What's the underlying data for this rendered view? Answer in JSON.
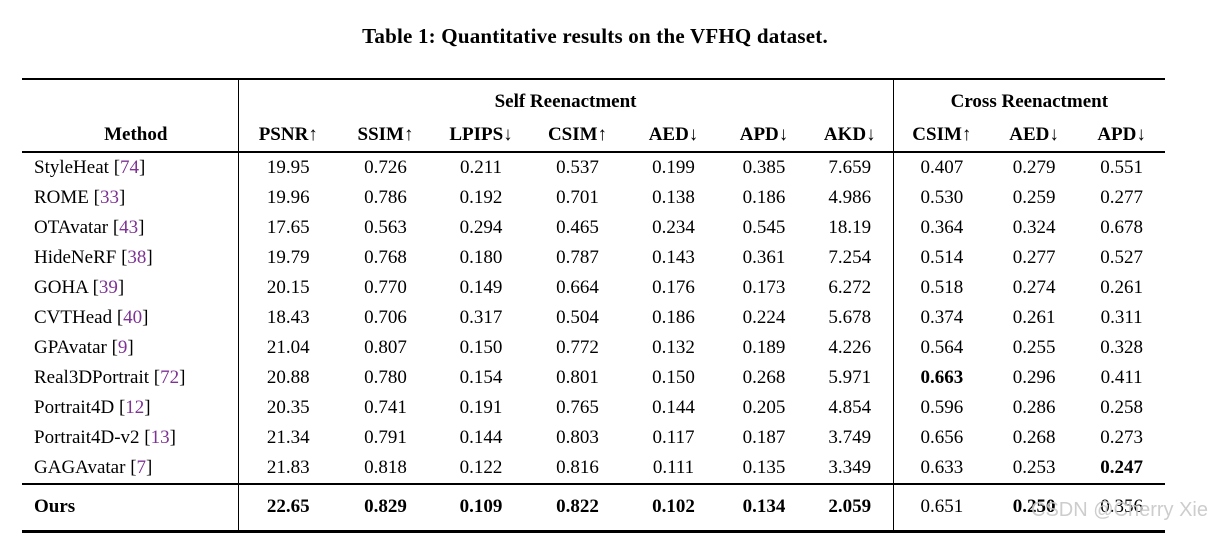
{
  "caption": "Table 1: Quantitative results on the VFHQ dataset.",
  "watermark": "CSDN @Cherry Xie",
  "colors": {
    "text": "#000000",
    "citation": "#7d3294",
    "watermark": "#c8c8c8",
    "rule": "#000000"
  },
  "table": {
    "method_header": "Method",
    "group_headers": [
      {
        "label": "Self Reenactment",
        "span": 7
      },
      {
        "label": "Cross Reenactment",
        "span": 3
      }
    ],
    "columns": [
      "PSNR↑",
      "SSIM↑",
      "LPIPS↓",
      "CSIM↑",
      "AED↓",
      "APD↓",
      "AKD↓",
      "CSIM↑",
      "AED↓",
      "APD↓"
    ],
    "rows": [
      {
        "method": "StyleHeat",
        "cite": "74",
        "values": [
          "19.95",
          "0.726",
          "0.211",
          "0.537",
          "0.199",
          "0.385",
          "7.659",
          "0.407",
          "0.279",
          "0.551"
        ],
        "bold": []
      },
      {
        "method": "ROME",
        "cite": "33",
        "values": [
          "19.96",
          "0.786",
          "0.192",
          "0.701",
          "0.138",
          "0.186",
          "4.986",
          "0.530",
          "0.259",
          "0.277"
        ],
        "bold": []
      },
      {
        "method": "OTAvatar",
        "cite": "43",
        "values": [
          "17.65",
          "0.563",
          "0.294",
          "0.465",
          "0.234",
          "0.545",
          "18.19",
          "0.364",
          "0.324",
          "0.678"
        ],
        "bold": []
      },
      {
        "method": "HideNeRF",
        "cite": "38",
        "values": [
          "19.79",
          "0.768",
          "0.180",
          "0.787",
          "0.143",
          "0.361",
          "7.254",
          "0.514",
          "0.277",
          "0.527"
        ],
        "bold": []
      },
      {
        "method": "GOHA",
        "cite": "39",
        "values": [
          "20.15",
          "0.770",
          "0.149",
          "0.664",
          "0.176",
          "0.173",
          "6.272",
          "0.518",
          "0.274",
          "0.261"
        ],
        "bold": []
      },
      {
        "method": "CVTHead",
        "cite": "40",
        "values": [
          "18.43",
          "0.706",
          "0.317",
          "0.504",
          "0.186",
          "0.224",
          "5.678",
          "0.374",
          "0.261",
          "0.311"
        ],
        "bold": []
      },
      {
        "method": "GPAvatar",
        "cite": "9",
        "values": [
          "21.04",
          "0.807",
          "0.150",
          "0.772",
          "0.132",
          "0.189",
          "4.226",
          "0.564",
          "0.255",
          "0.328"
        ],
        "bold": []
      },
      {
        "method": "Real3DPortrait",
        "cite": "72",
        "values": [
          "20.88",
          "0.780",
          "0.154",
          "0.801",
          "0.150",
          "0.268",
          "5.971",
          "0.663",
          "0.296",
          "0.411"
        ],
        "bold": [
          7
        ]
      },
      {
        "method": "Portrait4D",
        "cite": "12",
        "values": [
          "20.35",
          "0.741",
          "0.191",
          "0.765",
          "0.144",
          "0.205",
          "4.854",
          "0.596",
          "0.286",
          "0.258"
        ],
        "bold": []
      },
      {
        "method": "Portrait4D-v2",
        "cite": "13",
        "values": [
          "21.34",
          "0.791",
          "0.144",
          "0.803",
          "0.117",
          "0.187",
          "3.749",
          "0.656",
          "0.268",
          "0.273"
        ],
        "bold": []
      },
      {
        "method": "GAGAvatar",
        "cite": "7",
        "values": [
          "21.83",
          "0.818",
          "0.122",
          "0.816",
          "0.111",
          "0.135",
          "3.349",
          "0.633",
          "0.253",
          "0.247"
        ],
        "bold": [
          9
        ]
      },
      {
        "method": "Ours",
        "cite": null,
        "is_ours": true,
        "values": [
          "22.65",
          "0.829",
          "0.109",
          "0.822",
          "0.102",
          "0.134",
          "2.059",
          "0.651",
          "0.250",
          "0.356"
        ],
        "bold": [
          0,
          1,
          2,
          3,
          4,
          5,
          6,
          8
        ]
      }
    ]
  }
}
